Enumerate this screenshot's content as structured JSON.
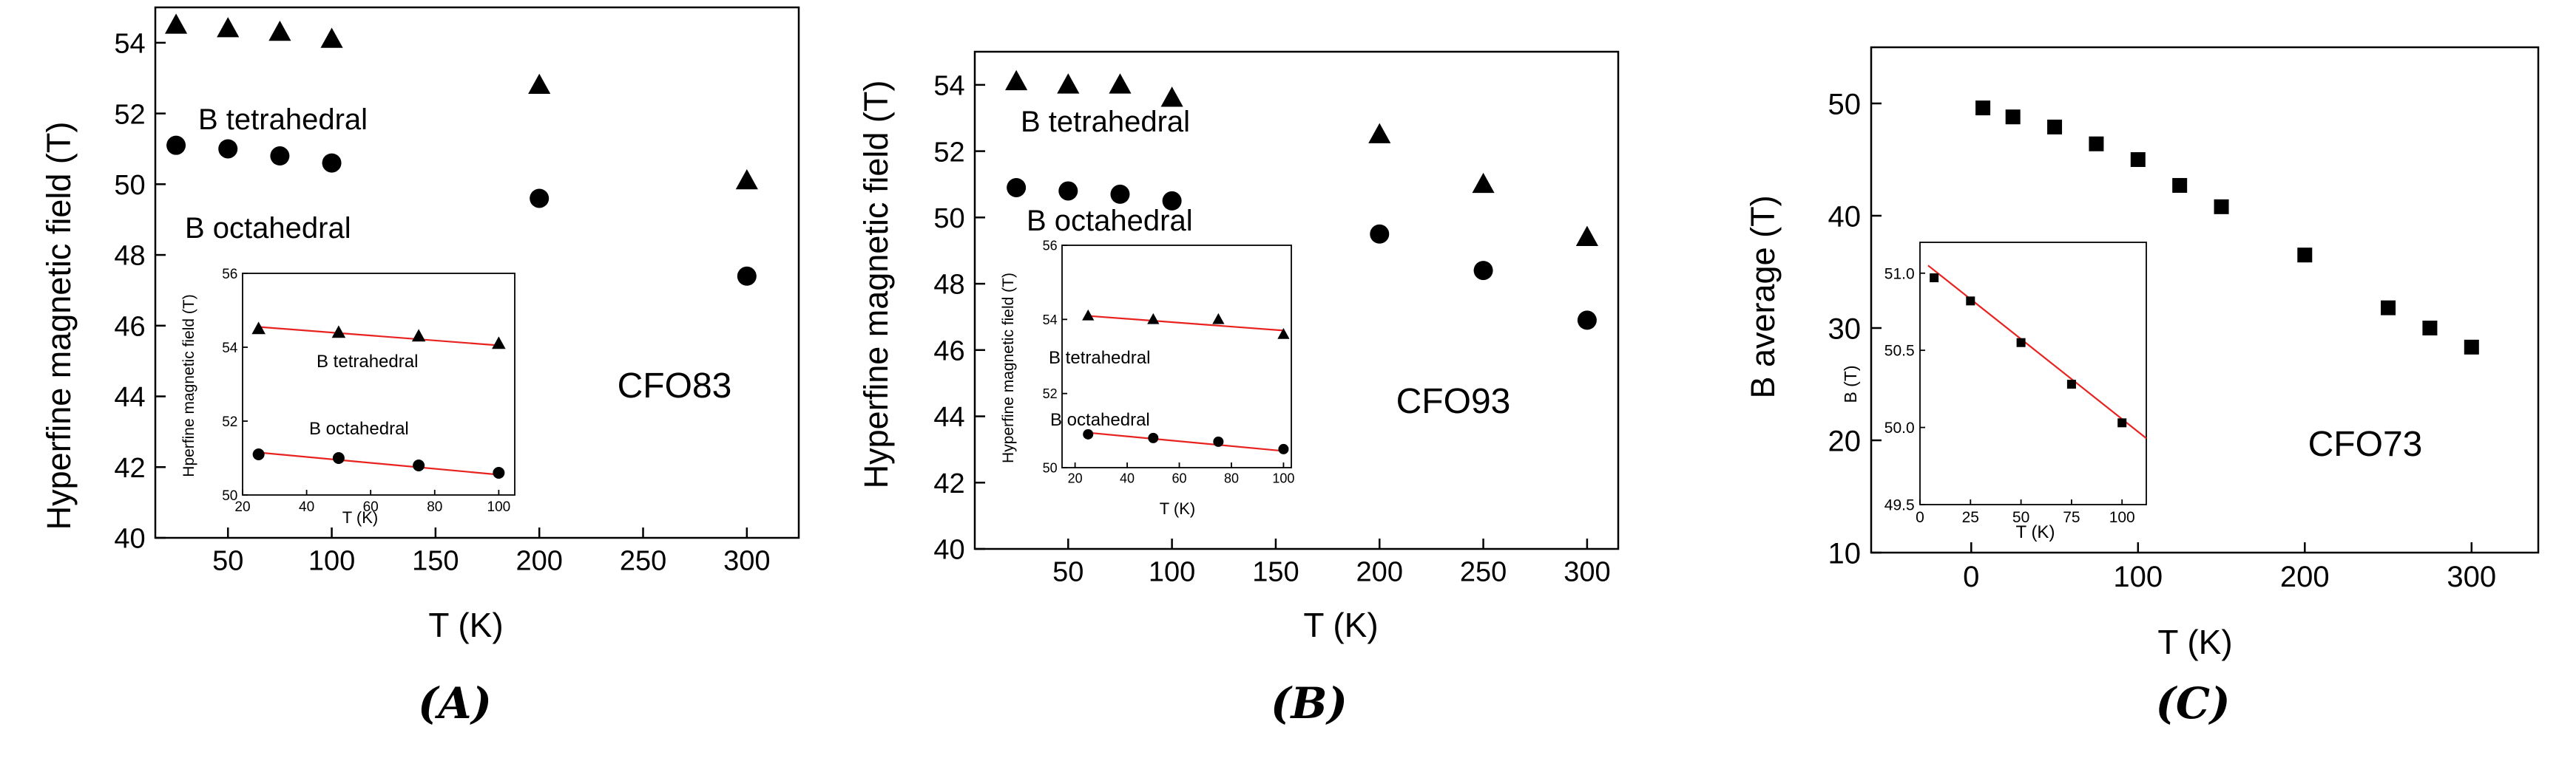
{
  "chart_data": [
    {
      "type": "scatter",
      "panel_label": "(A)",
      "sample_label": "CFO83",
      "xlabel": "T (K)",
      "ylabel": "Hyperfine magnetic field (T)",
      "xlim": [
        15,
        325
      ],
      "ylim": [
        40,
        55
      ],
      "xticks": [
        50,
        100,
        150,
        200,
        250,
        300
      ],
      "yticks": [
        40,
        42,
        44,
        46,
        48,
        50,
        52,
        54
      ],
      "series": [
        {
          "name": "B tetrahedral",
          "marker": "triangle",
          "x": [
            25,
            50,
            75,
            100,
            200,
            300
          ],
          "y": [
            54.5,
            54.4,
            54.3,
            54.1,
            52.8,
            50.1
          ]
        },
        {
          "name": "B octahedral",
          "marker": "circle",
          "x": [
            25,
            50,
            75,
            100,
            200,
            300
          ],
          "y": [
            51.1,
            51.0,
            50.8,
            50.6,
            49.6,
            47.4
          ]
        }
      ],
      "annotations": [
        "B tetrahedral",
        "B octahedral"
      ],
      "inset": {
        "xlabel": "T (K)",
        "ylabel": "Hperfine magnetic field (T)",
        "xlim": [
          20,
          105
        ],
        "ylim": [
          50,
          56
        ],
        "xticks": [
          20,
          40,
          60,
          80,
          100
        ],
        "yticks": [
          50,
          52,
          54,
          56
        ],
        "fit_color": "#e8231f",
        "series": [
          {
            "name": "B tetrahedral",
            "marker": "triangle",
            "x": [
              25,
              50,
              75,
              100
            ],
            "y": [
              54.5,
              54.4,
              54.3,
              54.1
            ],
            "fit": [
              54.55,
              54.05
            ]
          },
          {
            "name": "B octahedral",
            "marker": "circle",
            "x": [
              25,
              50,
              75,
              100
            ],
            "y": [
              51.1,
              51.0,
              50.8,
              50.6
            ],
            "fit": [
              51.15,
              50.55
            ]
          }
        ],
        "annotations": [
          "B tetrahedral",
          "B octahedral"
        ]
      }
    },
    {
      "type": "scatter",
      "panel_label": "(B)",
      "sample_label": "CFO93",
      "xlabel": "T (K)",
      "ylabel": "Hyperfine magnetic field (T)",
      "xlim": [
        5,
        315
      ],
      "ylim": [
        40,
        55
      ],
      "xticks": [
        50,
        100,
        150,
        200,
        250,
        300
      ],
      "yticks": [
        40,
        42,
        44,
        46,
        48,
        50,
        52,
        54
      ],
      "series": [
        {
          "name": "B tetrahedral",
          "marker": "triangle",
          "x": [
            25,
            50,
            75,
            100,
            200,
            250,
            300
          ],
          "y": [
            54.1,
            54.0,
            54.0,
            53.6,
            52.5,
            51.0,
            49.4
          ]
        },
        {
          "name": "B octahedral",
          "marker": "circle",
          "x": [
            25,
            50,
            75,
            100,
            200,
            250,
            300
          ],
          "y": [
            50.9,
            50.8,
            50.7,
            50.5,
            49.5,
            48.4,
            46.9
          ]
        }
      ],
      "annotations": [
        "B tetrahedral",
        "B octahedral"
      ],
      "inset": {
        "xlabel": "T (K)",
        "ylabel": "Hyperfine magnetic field (T)",
        "xlim": [
          15,
          103
        ],
        "ylim": [
          50,
          56
        ],
        "xticks": [
          20,
          40,
          60,
          80,
          100
        ],
        "yticks": [
          50,
          52,
          54,
          56
        ],
        "fit_color": "#e8231f",
        "series": [
          {
            "name": "B tetrahedral",
            "marker": "triangle",
            "x": [
              25,
              50,
              75,
              100
            ],
            "y": [
              54.1,
              54.0,
              54.0,
              53.6
            ],
            "fit": [
              54.1,
              53.7
            ]
          },
          {
            "name": "B octahedral",
            "marker": "circle",
            "x": [
              25,
              50,
              75,
              100
            ],
            "y": [
              50.9,
              50.8,
              50.7,
              50.5
            ],
            "fit": [
              50.95,
              50.45
            ]
          }
        ],
        "annotations": [
          "B tetrahedral",
          "B octahedral"
        ]
      }
    },
    {
      "type": "scatter",
      "panel_label": "(C)",
      "sample_label": "CFO73",
      "xlabel": "T (K)",
      "ylabel": "B average (T)",
      "xlim": [
        -60,
        340
      ],
      "ylim": [
        10,
        55
      ],
      "xticks": [
        0,
        100,
        200,
        300
      ],
      "yticks": [
        10,
        20,
        30,
        40,
        50
      ],
      "series": [
        {
          "name": "B average",
          "marker": "square",
          "x": [
            7,
            25,
            50,
            75,
            100,
            125,
            150,
            200,
            250,
            275,
            300
          ],
          "y": [
            49.6,
            48.8,
            47.9,
            46.4,
            45.0,
            42.7,
            40.8,
            36.5,
            31.8,
            30.0,
            28.3
          ]
        }
      ],
      "inset": {
        "xlabel": "T (K)",
        "ylabel": "B (T)",
        "xlim": [
          0,
          112
        ],
        "ylim": [
          49.5,
          51.2
        ],
        "xticks": [
          0,
          25,
          50,
          75,
          100
        ],
        "yticks": [
          49.5,
          50.0,
          50.5,
          51.0
        ],
        "fit_color": "#e8231f",
        "series": [
          {
            "name": "B",
            "marker": "square",
            "x": [
              7,
              25,
              50,
              75,
              100
            ],
            "y": [
              50.97,
              50.82,
              50.55,
              50.28,
              50.03
            ],
            "fit": [
              51.05,
              49.93
            ]
          }
        ]
      }
    }
  ]
}
